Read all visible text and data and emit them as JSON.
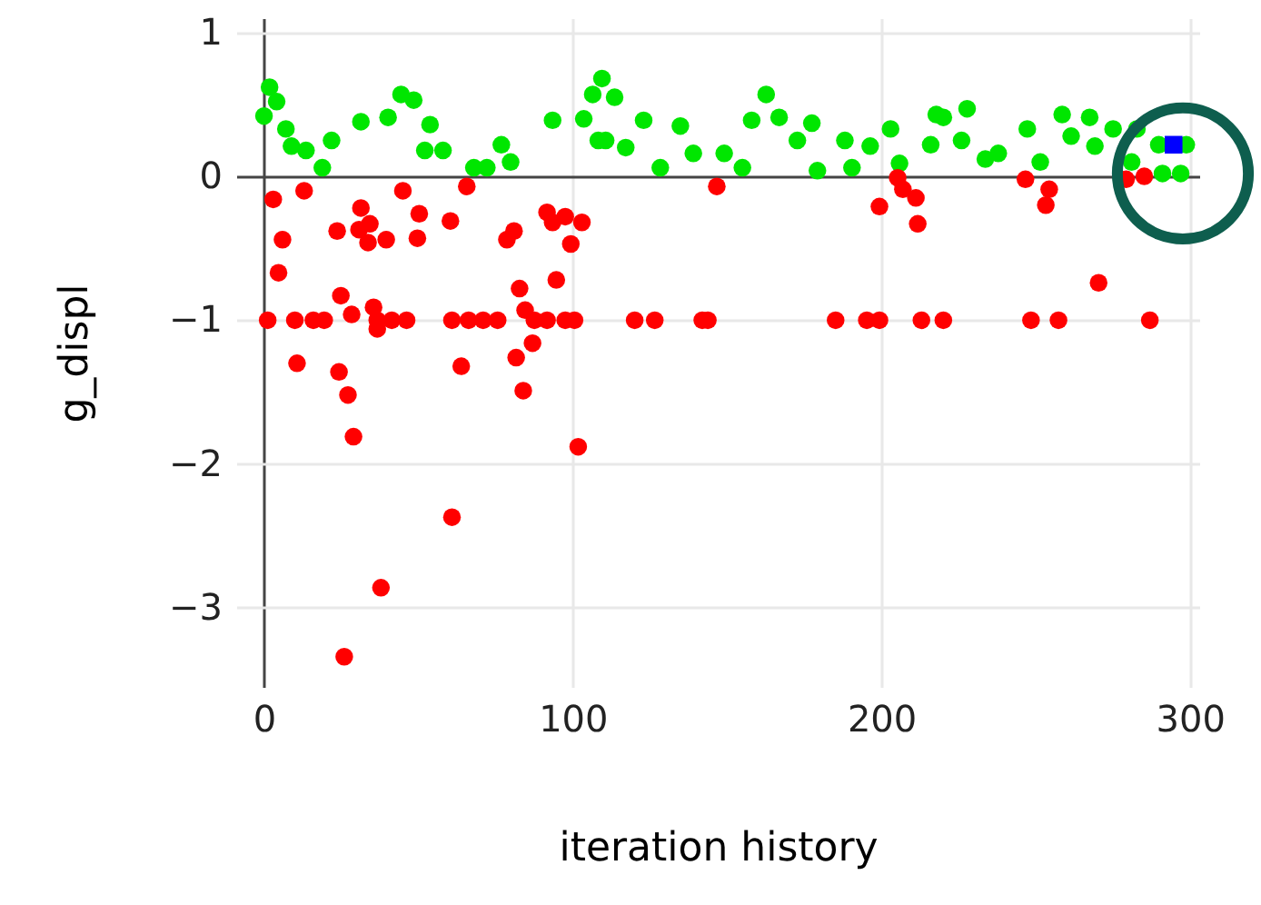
{
  "chart_data": {
    "type": "scatter",
    "xlabel": "iteration history",
    "ylabel": "g_displ",
    "xlim": [
      -9,
      303
    ],
    "ylim": [
      -3.55,
      1.1
    ],
    "xticks": [
      0,
      100,
      200,
      300
    ],
    "yticks": [
      -3,
      -2,
      -1,
      0,
      1
    ],
    "grid": true,
    "marker": "circle",
    "series": [
      {
        "color": "#00e600",
        "x": [
          1.8,
          0,
          4.1,
          7.1,
          8.9,
          13.6,
          18.9,
          21.9,
          31.4,
          40.2,
          44.4,
          48.5,
          53.8,
          52.1,
          58,
          68,
          72.2,
          76.9,
          79.9,
          93.5,
          103.6,
          106.5,
          108.3,
          109.5,
          113.6,
          110.7,
          117.2,
          123,
          128.4,
          134.9,
          139.1,
          149.1,
          155,
          158,
          162.7,
          166.9,
          172.8,
          177.5,
          179.3,
          188.2,
          190.5,
          196.4,
          203,
          205.9,
          216,
          217.8,
          220.1,
          227.8,
          226,
          233.7,
          237.9,
          247.3,
          251.5,
          258.6,
          261.5,
          267.5,
          269.2,
          275.1,
          281.1,
          282.8,
          289.9,
          291.1,
          297,
          298.8
        ],
        "values": [
          0.62,
          0.42,
          0.52,
          0.33,
          0.21,
          0.18,
          0.06,
          0.25,
          0.38,
          0.41,
          0.57,
          0.53,
          0.36,
          0.18,
          0.18,
          0.06,
          0.06,
          0.22,
          0.1,
          0.39,
          0.4,
          0.57,
          0.25,
          0.68,
          0.55,
          0.25,
          0.2,
          0.39,
          0.06,
          0.35,
          0.16,
          0.16,
          0.06,
          0.39,
          0.57,
          0.41,
          0.25,
          0.37,
          0.04,
          0.25,
          0.06,
          0.21,
          0.33,
          0.09,
          0.22,
          0.43,
          0.41,
          0.47,
          0.25,
          0.12,
          0.16,
          0.33,
          0.1,
          0.43,
          0.28,
          0.41,
          0.21,
          0.33,
          0.1,
          0.33,
          0.22,
          0.02,
          0.02,
          0.22
        ]
      },
      {
        "color": "#ff0000",
        "x": [
          3,
          13,
          6,
          4.7,
          23.7,
          31.4,
          30.8,
          34.3,
          33.7,
          39.6,
          45,
          50.3,
          49.7,
          60.4,
          65.7,
          81,
          78.7,
          91.7,
          93.5,
          97.6,
          103,
          99.4,
          82.8,
          94.7,
          24.9,
          1.2,
          10,
          16,
          19.5,
          36.7,
          41.4,
          46.2,
          60.9,
          66.3,
          71,
          75.7,
          87.6,
          91.7,
          97.6,
          100.6,
          28.4,
          35.5,
          36.7,
          84.6,
          10.7,
          24.3,
          27.2,
          29,
          81.7,
          87,
          84,
          63.9,
          101.8,
          60.9,
          37.9,
          26,
          120.1,
          126.6,
          142,
          143.8,
          185.2,
          195.3,
          199.4,
          213,
          220.1,
          248.5,
          257.4,
          287,
          270.4,
          146.7,
          199.4,
          205.3,
          207,
          211.2,
          211.8,
          246.7,
          254.4,
          253.3,
          279.3,
          285.2
        ],
        "values": [
          -0.16,
          -0.1,
          -0.44,
          -0.67,
          -0.38,
          -0.22,
          -0.37,
          -0.33,
          -0.46,
          -0.44,
          -0.1,
          -0.26,
          -0.43,
          -0.31,
          -0.07,
          -0.38,
          -0.44,
          -0.25,
          -0.32,
          -0.28,
          -0.32,
          -0.47,
          -0.78,
          -0.72,
          -0.83,
          -1,
          -1,
          -1,
          -1,
          -1,
          -1,
          -1,
          -1,
          -1,
          -1,
          -1,
          -1,
          -1,
          -1,
          -1,
          -0.96,
          -0.91,
          -1.06,
          -0.93,
          -1.3,
          -1.36,
          -1.52,
          -1.81,
          -1.26,
          -1.16,
          -1.49,
          -1.32,
          -1.88,
          -2.37,
          -2.86,
          -3.34,
          -1,
          -1,
          -1,
          -1,
          -1,
          -1,
          -1,
          -1,
          -1,
          -1,
          -1,
          -1,
          -0.74,
          -0.07,
          -0.21,
          -0.01,
          -0.09,
          -0.15,
          -0.33,
          -0.02,
          -0.09,
          -0.2,
          -0.02,
          0
        ]
      },
      {
        "color": "#0000ff",
        "marker": "square",
        "x": [
          294.7
        ],
        "values": [
          0.22
        ]
      }
    ]
  }
}
